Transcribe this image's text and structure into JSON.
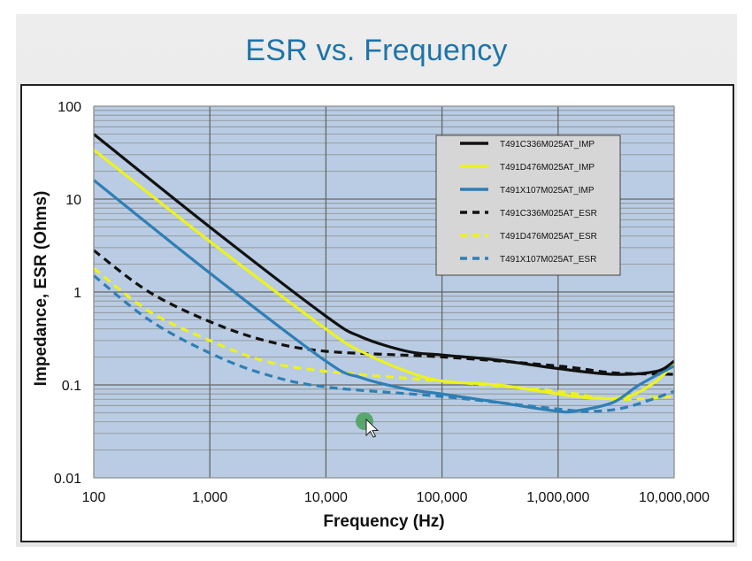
{
  "chart_data": {
    "type": "line",
    "title": "ESR vs. Frequency",
    "xlabel": "Frequency (Hz)",
    "ylabel": "Impedance, ESR (Ohms)",
    "x_scale": "log",
    "y_scale": "log",
    "xlim": [
      100,
      10000000
    ],
    "ylim": [
      0.01,
      100
    ],
    "grid": true,
    "legend_position": "top-right",
    "x_ticks": [
      {
        "value": 100,
        "label": "100"
      },
      {
        "value": 1000,
        "label": "1,000"
      },
      {
        "value": 10000,
        "label": "10,000"
      },
      {
        "value": 100000,
        "label": "100,000"
      },
      {
        "value": 1000000,
        "label": "1,000,000"
      },
      {
        "value": 10000000,
        "label": "10,000,000"
      }
    ],
    "y_ticks": [
      {
        "value": 100,
        "label": "100"
      },
      {
        "value": 10,
        "label": "10"
      },
      {
        "value": 1,
        "label": "1"
      },
      {
        "value": 0.1,
        "label": "0.1"
      },
      {
        "value": 0.01,
        "label": "0.01"
      }
    ],
    "series": [
      {
        "name": "T491C336M025AT_IMP",
        "color": "#111111",
        "dashed": false,
        "x": [
          100,
          1000,
          10000,
          20000,
          50000,
          100000,
          300000,
          1000000,
          3000000,
          7000000,
          10000000
        ],
        "y": [
          50,
          5,
          0.55,
          0.33,
          0.23,
          0.21,
          0.185,
          0.15,
          0.13,
          0.14,
          0.18
        ]
      },
      {
        "name": "T491D476M025AT_IMP",
        "color": "#ecf21e",
        "dashed": false,
        "x": [
          100,
          1000,
          10000,
          20000,
          50000,
          100000,
          300000,
          1000000,
          2000000,
          4000000,
          7000000,
          10000000
        ],
        "y": [
          34,
          3.5,
          0.4,
          0.23,
          0.14,
          0.11,
          0.1,
          0.08,
          0.072,
          0.075,
          0.11,
          0.17
        ]
      },
      {
        "name": "T491X107M025AT_IMP",
        "color": "#2f7fb5",
        "dashed": false,
        "x": [
          100,
          1000,
          10000,
          20000,
          50000,
          100000,
          300000,
          1000000,
          1500000,
          3000000,
          5000000,
          10000000
        ],
        "y": [
          16,
          1.6,
          0.18,
          0.12,
          0.09,
          0.08,
          0.065,
          0.052,
          0.053,
          0.065,
          0.1,
          0.16
        ]
      },
      {
        "name": "T491C336M025AT_ESR",
        "color": "#111111",
        "dashed": true,
        "x": [
          100,
          300,
          1000,
          3000,
          10000,
          100000,
          1000000,
          3000000,
          10000000
        ],
        "y": [
          2.8,
          1.0,
          0.48,
          0.3,
          0.23,
          0.2,
          0.16,
          0.135,
          0.13
        ]
      },
      {
        "name": "T491D476M025AT_ESR",
        "color": "#ecf21e",
        "dashed": true,
        "x": [
          100,
          300,
          1000,
          3000,
          10000,
          100000,
          1000000,
          3000000,
          10000000
        ],
        "y": [
          1.8,
          0.62,
          0.3,
          0.18,
          0.14,
          0.11,
          0.085,
          0.07,
          0.075
        ]
      },
      {
        "name": "T491X107M025AT_ESR",
        "color": "#2f7fb5",
        "dashed": true,
        "x": [
          100,
          300,
          1000,
          3000,
          10000,
          100000,
          1000000,
          2000000,
          4000000,
          10000000
        ],
        "y": [
          1.5,
          0.5,
          0.22,
          0.13,
          0.095,
          0.075,
          0.055,
          0.052,
          0.058,
          0.085
        ]
      }
    ]
  }
}
